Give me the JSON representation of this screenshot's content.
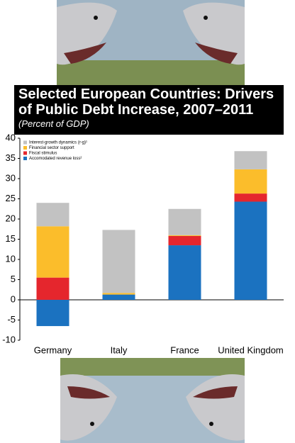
{
  "chart_data": {
    "type": "stacked-bar",
    "title": "Selected European Countries: Drivers of Public Debt Increase, 2007–2011",
    "subtitle": "(Percent of GDP)",
    "categories": [
      "Germany",
      "Italy",
      "France",
      "United Kingdom"
    ],
    "series": [
      {
        "name": "Accomodated revenue loss²",
        "color": "#1b72c0",
        "values": [
          -6.5,
          1.3,
          13.5,
          24.3
        ]
      },
      {
        "name": "Fiscal stimulus",
        "color": "#e5262d",
        "values": [
          5.5,
          0,
          2.3,
          2
        ]
      },
      {
        "name": "Financial sector support",
        "color": "#fbbd2b",
        "values": [
          12.7,
          0.4,
          0.2,
          6
        ]
      },
      {
        "name": "Interest-growth dynamics (r-g)¹",
        "color": "#c2c2c2",
        "values": [
          5.8,
          15.6,
          6.5,
          4.5
        ]
      }
    ],
    "ylim": [
      -10,
      40
    ],
    "yticks": [
      -10,
      -5,
      0,
      5,
      10,
      15,
      20,
      25,
      30,
      35,
      40
    ]
  }
}
